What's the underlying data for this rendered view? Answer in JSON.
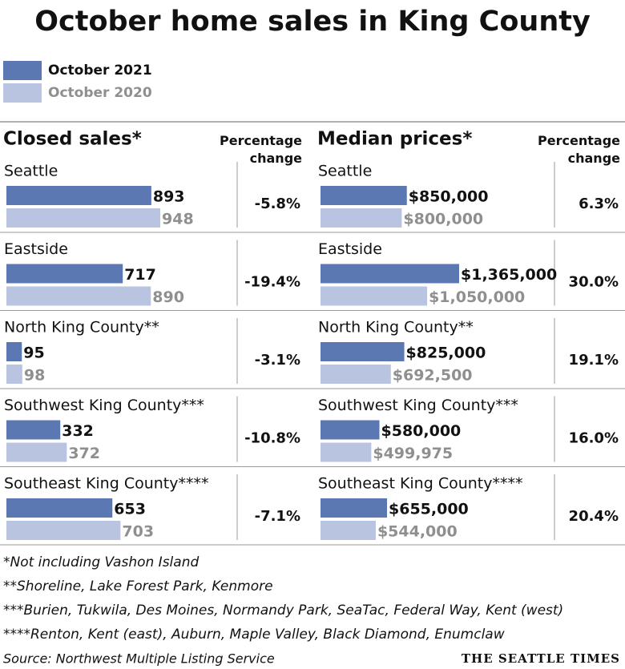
{
  "title": "October home sales in King County",
  "chart_data": [
    {
      "type": "bar",
      "orientation": "horizontal",
      "title": "Closed sales*",
      "change_title": "Percentage change",
      "categories": [
        "Seattle",
        "Eastside",
        "North King County**",
        "Southwest King County***",
        "Southeast King County****"
      ],
      "series": [
        {
          "name": "October 2021",
          "color": "#5b78b3",
          "values": [
            893,
            717,
            95,
            332,
            653
          ]
        },
        {
          "name": "October 2020",
          "color": "#b9c5e0",
          "values": [
            948,
            890,
            98,
            372,
            703
          ]
        }
      ],
      "change": {
        "values": [
          -5.8,
          -19.4,
          -3.1,
          -10.8,
          -7.1
        ],
        "value_labels": [
          "-5.8%",
          "-19.4%",
          "-3.1%",
          "-10.8%",
          "-7.1%"
        ]
      }
    },
    {
      "type": "bar",
      "orientation": "horizontal",
      "title": "Median prices*",
      "change_title": "Percentage change",
      "categories": [
        "Seattle",
        "Eastside",
        "North King County**",
        "Southwest King County***",
        "Southeast King County****"
      ],
      "series": [
        {
          "color": "#5b78b3",
          "values": [
            850000,
            1365000,
            825000,
            580000,
            655000
          ],
          "value_labels": [
            "$850,000",
            "$1,365,000",
            "$825,000",
            "$580,000",
            "$655,000"
          ]
        },
        {
          "color": "#b9c5e0",
          "values": [
            800000,
            1050000,
            692500,
            499975,
            544000
          ],
          "value_labels": [
            "$800,000",
            "$1,050,000",
            "$692,500",
            "$499,975",
            "$544,000"
          ]
        }
      ],
      "change": {
        "values": [
          6.3,
          30.0,
          19.1,
          16.0,
          20.4
        ],
        "value_labels": [
          "6.3%",
          "30.0%",
          "19.1%",
          "16.0%",
          "20.4%"
        ]
      }
    }
  ],
  "footnotes": [
    "*Not including Vashon Island",
    "**Shoreline, Lake Forest Park, Kenmore",
    "***Burien, Tukwila, Des Moines, Normandy Park, SeaTac, Federal Way, Kent (west)",
    "****Renton, Kent (east), Auburn, Maple Valley, Black Diamond, Enumclaw"
  ],
  "source": "Source: Northwest Multiple Listing Service",
  "credit": "THE SEATTLE TIMES"
}
